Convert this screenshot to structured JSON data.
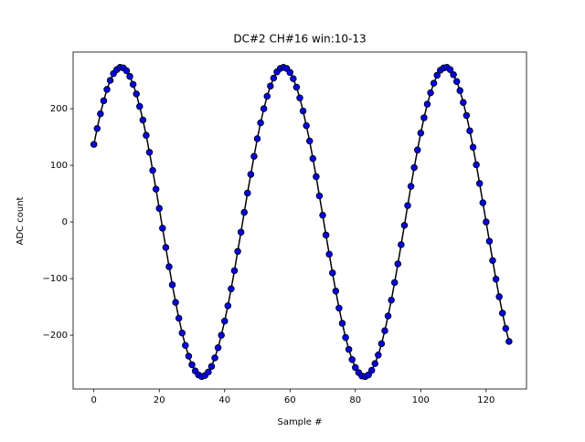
{
  "chart_data": {
    "type": "line",
    "title": "DC#2 CH#16 win:10-13",
    "xlabel": "Sample #",
    "ylabel": "ADC count",
    "x": [
      0,
      1,
      2,
      3,
      4,
      5,
      6,
      7,
      8,
      9,
      10,
      11,
      12,
      13,
      14,
      15,
      16,
      17,
      18,
      19,
      20,
      21,
      22,
      23,
      24,
      25,
      26,
      27,
      28,
      29,
      30,
      31,
      32,
      33,
      34,
      35,
      36,
      37,
      38,
      39,
      40,
      41,
      42,
      43,
      44,
      45,
      46,
      47,
      48,
      49,
      50,
      51,
      52,
      53,
      54,
      55,
      56,
      57,
      58,
      59,
      60,
      61,
      62,
      63,
      64,
      65,
      66,
      67,
      68,
      69,
      70,
      71,
      72,
      73,
      74,
      75,
      76,
      77,
      78,
      79,
      80,
      81,
      82,
      83,
      84,
      85,
      86,
      87,
      88,
      89,
      90,
      91,
      92,
      93,
      94,
      95,
      96,
      97,
      98,
      99,
      100,
      101,
      102,
      103,
      104,
      105,
      106,
      107,
      108,
      109,
      110,
      111,
      112,
      113,
      114,
      115,
      116,
      117,
      118,
      119,
      120,
      121,
      122,
      123,
      124,
      125,
      126,
      127
    ],
    "series": [
      {
        "name": "ADC",
        "color": "#0000ff",
        "line_color": "#000000",
        "values": [
          137,
          165,
          191,
          214,
          234,
          250,
          262,
          269,
          273,
          272,
          267,
          257,
          243,
          226,
          204,
          180,
          153,
          123,
          91,
          58,
          24,
          -11,
          -45,
          -79,
          -111,
          -142,
          -170,
          -196,
          -218,
          -237,
          -252,
          -263,
          -270,
          -273,
          -271,
          -265,
          -255,
          -240,
          -222,
          -200,
          -175,
          -148,
          -118,
          -86,
          -52,
          -18,
          17,
          51,
          84,
          116,
          147,
          175,
          200,
          222,
          240,
          254,
          265,
          271,
          273,
          271,
          264,
          253,
          238,
          219,
          196,
          170,
          143,
          112,
          80,
          46,
          12,
          -23,
          -57,
          -90,
          -122,
          -152,
          -179,
          -204,
          -225,
          -243,
          -257,
          -266,
          -272,
          -273,
          -270,
          -262,
          -250,
          -235,
          -215,
          -192,
          -166,
          -138,
          -107,
          -74,
          -40,
          -6,
          29,
          63,
          96,
          127,
          157,
          184,
          208,
          228,
          245,
          259,
          268,
          272,
          273,
          269,
          260,
          248,
          232,
          211,
          188,
          161,
          132,
          101,
          68,
          34,
          0,
          -34,
          -68,
          -101,
          -132,
          -161,
          -188,
          -211
        ]
      }
    ],
    "xlim": [
      -6.35,
      132.35
    ],
    "ylim": [
      -295,
      300
    ],
    "xticks": [
      0,
      20,
      40,
      60,
      80,
      100,
      120
    ],
    "yticks": [
      {
        "value": -200,
        "label": "−200"
      },
      {
        "value": -100,
        "label": "−100"
      },
      0,
      100,
      200
    ],
    "grid": false
  }
}
